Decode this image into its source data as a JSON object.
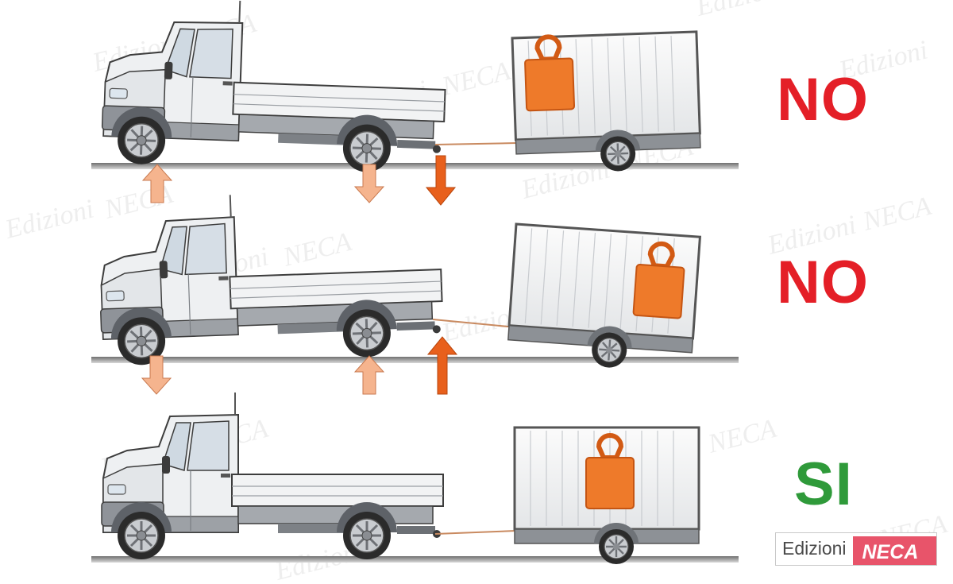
{
  "verdicts": {
    "top": "NO",
    "middle": "NO",
    "bottom": "SI"
  },
  "colors": {
    "no": "#e41f27",
    "si": "#2f9a3a",
    "arrow_light": "#f5b48e",
    "arrow_dark": "#e8601c",
    "weight": "#ee7a2a",
    "brand_box": "#e8546a"
  },
  "brand": {
    "left_text": "Edizioni",
    "right_text": "NECA"
  },
  "watermark": {
    "text_a": "Edizioni",
    "text_b": "NECA"
  }
}
